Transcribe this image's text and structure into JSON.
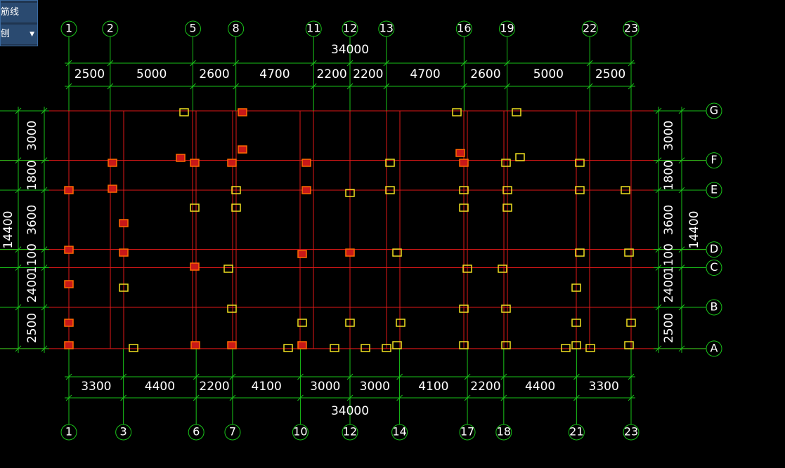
{
  "toolbar": {
    "items": [
      "筋线",
      "刨"
    ]
  },
  "plan": {
    "top": {
      "axes": [
        "1",
        "2",
        "5",
        "8",
        "11",
        "12",
        "13",
        "16",
        "19",
        "22",
        "23"
      ],
      "spans": [
        2500,
        5000,
        2600,
        4700,
        2200,
        2200,
        4700,
        2600,
        5000,
        2500
      ],
      "total": 34000
    },
    "bottom": {
      "axes": [
        "1",
        "3",
        "6",
        "7",
        "10",
        "12",
        "14",
        "17",
        "18",
        "21",
        "23"
      ],
      "spans": [
        3300,
        4400,
        2200,
        4100,
        3000,
        3000,
        4100,
        2200,
        4400,
        3300
      ],
      "total": 34000
    },
    "side": {
      "axes": [
        "G",
        "F",
        "E",
        "D",
        "C",
        "B",
        "A"
      ],
      "spans": [
        3000,
        1800,
        3600,
        1100,
        2400,
        2500
      ],
      "total": 14400
    }
  }
}
